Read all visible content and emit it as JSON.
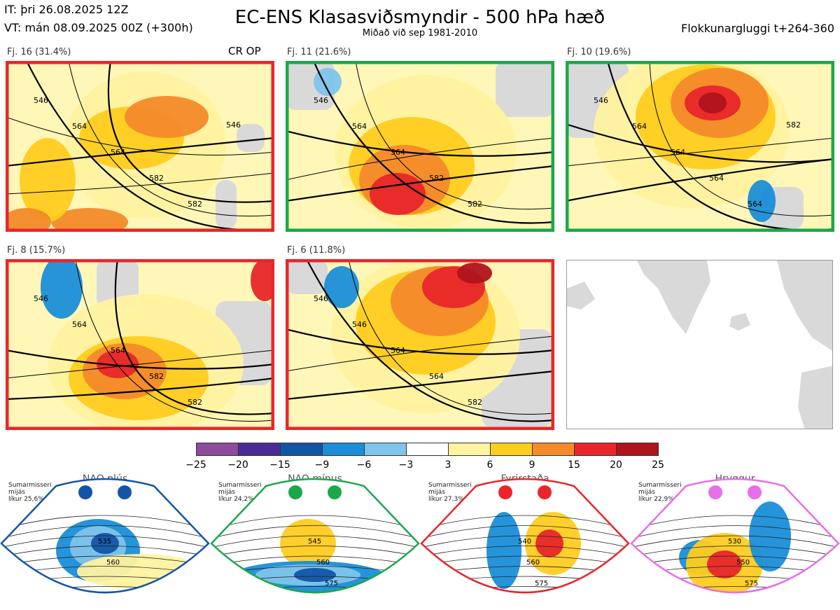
{
  "header": {
    "issue_time": "IT: þri 26.08.2025 12Z",
    "valid_time": "VT: mán 08.09.2025 00Z  (+300h)",
    "title": "EC-ENS Klasasviðsmyndir - 500 hPa hæð",
    "subtitle": "Miðað við sep 1981-2010",
    "window": "Flokkunargluggi t+264-360"
  },
  "panels": [
    {
      "label": "Fj. 16 (31.4%)",
      "border_color": "#e8262a",
      "badge": "CR OP",
      "contours": [
        "546",
        "564",
        "564",
        "582",
        "582",
        "546"
      ]
    },
    {
      "label": "Fj. 11 (21.6%)",
      "border_color": "#1aa84a",
      "contours": [
        "546",
        "564",
        "564",
        "582",
        "582"
      ]
    },
    {
      "label": "Fj. 10 (19.6%)",
      "border_color": "#1aa84a",
      "contours": [
        "546",
        "564",
        "564",
        "564",
        "564",
        "582"
      ]
    },
    {
      "label": "Fj. 8 (15.7%)",
      "border_color": "#e8262a",
      "contours": [
        "546",
        "564",
        "564",
        "582",
        "582"
      ]
    },
    {
      "label": "Fj. 6 (11.8%)",
      "border_color": "#e8262a",
      "contours": [
        "546",
        "546",
        "564",
        "564",
        "582"
      ]
    }
  ],
  "colorbar": {
    "ticks": [
      "−25",
      "−20",
      "−15",
      "−9",
      "−6",
      "−3",
      "3",
      "6",
      "9",
      "15",
      "20",
      "25"
    ],
    "colors": [
      "#8e4a9c",
      "#4d2b96",
      "#1255a6",
      "#1a8ed8",
      "#7fc4ec",
      "#ffffff",
      "#fff2a0",
      "#ffcc20",
      "#f48a2a",
      "#e8262a",
      "#b0141c"
    ]
  },
  "regimes": [
    {
      "name": "NAO plús",
      "season": "Sumarmisseri",
      "freq_label": "mijás",
      "prob": "líkur 25,6%",
      "color": "#1255a6",
      "contours": [
        "535",
        "560"
      ]
    },
    {
      "name": "NAO mínus",
      "season": "Sumarmisseri",
      "freq_label": "mijás",
      "prob": "líkur 24,2%",
      "color": "#1aa84a",
      "contours": [
        "545",
        "560",
        "575"
      ]
    },
    {
      "name": "Fyrirstaða",
      "season": "Sumarmisseri",
      "freq_label": "mijás",
      "prob": "líkur 27,3%",
      "color": "#e8262a",
      "contours": [
        "540",
        "560",
        "575"
      ]
    },
    {
      "name": "Hryggur",
      "season": "Sumarmisseri",
      "freq_label": "mijás",
      "prob": "líkur 22,9%",
      "color": "#e86ee8",
      "contours": [
        "530",
        "550",
        "575"
      ]
    }
  ],
  "chart_data": {
    "type": "heatmap",
    "title": "EC-ENS Klasasviðsmyndir - 500 hPa hæð",
    "subtitle": "Miðað við sep 1981-2010",
    "clusters": [
      {
        "label": "Fj. 16",
        "percent": 31.4
      },
      {
        "label": "Fj. 11",
        "percent": 21.6
      },
      {
        "label": "Fj. 10",
        "percent": 19.6
      },
      {
        "label": "Fj. 8",
        "percent": 15.7
      },
      {
        "label": "Fj. 6",
        "percent": 11.8
      }
    ],
    "colorbar_levels": [
      -25,
      -20,
      -15,
      -9,
      -6,
      -3,
      3,
      6,
      9,
      15,
      20,
      25
    ],
    "regime_probabilities": [
      {
        "name": "NAO plús",
        "percent": 25.6
      },
      {
        "name": "NAO mínus",
        "percent": 24.2
      },
      {
        "name": "Fyrirstaða",
        "percent": 27.3
      },
      {
        "name": "Hryggur",
        "percent": 22.9
      }
    ]
  }
}
